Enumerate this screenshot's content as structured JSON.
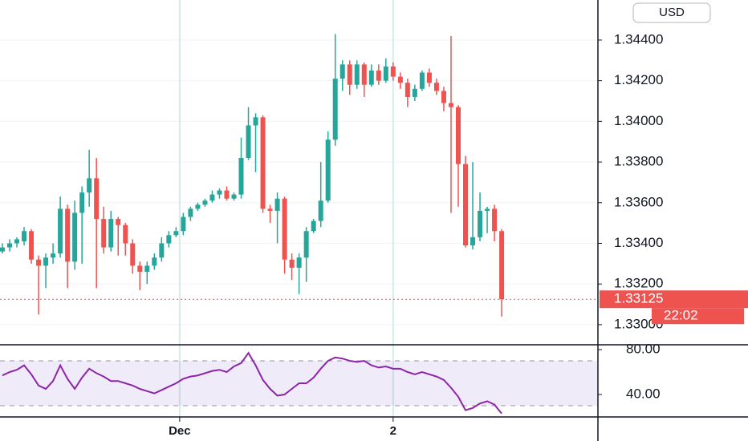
{
  "chart_data": [
    {
      "type": "candlestick",
      "currency": "USD",
      "up_color": "#26a69a",
      "down_color": "#ef5350",
      "open": [
        1.3336,
        1.3338,
        1.334,
        1.3341,
        1.3346,
        1.3332,
        1.3329,
        1.3333,
        1.3335,
        1.3357,
        1.3331,
        1.3355,
        1.3365,
        1.3372,
        1.3352,
        1.3338,
        1.3352,
        1.3349,
        1.334,
        1.3329,
        1.3326,
        1.3329,
        1.3333,
        1.334,
        1.3344,
        1.3346,
        1.3353,
        1.3357,
        1.3359,
        1.3361,
        1.3364,
        1.3366,
        1.3362,
        1.3364,
        1.3382,
        1.3398,
        1.3402,
        1.3357,
        1.3356,
        1.3362,
        1.3332,
        1.3328,
        1.3333,
        1.3346,
        1.3351,
        1.3361,
        1.3391,
        1.3421,
        1.3428,
        1.3418,
        1.3428,
        1.3418,
        1.3425,
        1.342,
        1.3427,
        1.3422,
        1.3419,
        1.3412,
        1.3416,
        1.3424,
        1.3419,
        1.3415,
        1.3409,
        1.3407,
        1.3379,
        1.3339,
        1.3343,
        1.3356,
        1.3357,
        1.3346
      ],
      "high": [
        1.334,
        1.3342,
        1.3343,
        1.3348,
        1.3347,
        1.3334,
        1.3335,
        1.334,
        1.3363,
        1.3359,
        1.3361,
        1.3368,
        1.3386,
        1.3382,
        1.3358,
        1.3356,
        1.3353,
        1.335,
        1.3342,
        1.3331,
        1.3331,
        1.3335,
        1.3343,
        1.3346,
        1.3348,
        1.3355,
        1.3358,
        1.336,
        1.3362,
        1.3366,
        1.3367,
        1.3368,
        1.3365,
        1.3392,
        1.3407,
        1.3404,
        1.3403,
        1.3359,
        1.3365,
        1.3363,
        1.3335,
        1.3335,
        1.3348,
        1.3352,
        1.338,
        1.3395,
        1.3443,
        1.343,
        1.343,
        1.343,
        1.3429,
        1.3428,
        1.3428,
        1.3431,
        1.3429,
        1.3424,
        1.3421,
        1.3418,
        1.3425,
        1.3426,
        1.3421,
        1.3417,
        1.3442,
        1.3408,
        1.3383,
        1.338,
        1.3365,
        1.3358,
        1.3359,
        1.3347
      ],
      "low": [
        1.3335,
        1.3336,
        1.3338,
        1.3339,
        1.333,
        1.3305,
        1.3318,
        1.333,
        1.3333,
        1.3318,
        1.3327,
        1.333,
        1.3358,
        1.3318,
        1.3335,
        1.3336,
        1.3334,
        1.3334,
        1.3325,
        1.3317,
        1.332,
        1.3327,
        1.3331,
        1.3338,
        1.3343,
        1.3344,
        1.3351,
        1.3356,
        1.3358,
        1.336,
        1.3362,
        1.3361,
        1.3361,
        1.3362,
        1.3381,
        1.3375,
        1.3355,
        1.335,
        1.334,
        1.3325,
        1.3322,
        1.3315,
        1.3321,
        1.3345,
        1.3348,
        1.336,
        1.3388,
        1.3415,
        1.3413,
        1.3416,
        1.3412,
        1.3417,
        1.3418,
        1.3419,
        1.342,
        1.3416,
        1.3407,
        1.341,
        1.3415,
        1.3417,
        1.3413,
        1.3405,
        1.3355,
        1.3358,
        1.3338,
        1.3337,
        1.3341,
        1.3345,
        1.3341,
        1.3304
      ],
      "close": [
        1.3338,
        1.334,
        1.3342,
        1.3346,
        1.3332,
        1.3329,
        1.3333,
        1.3335,
        1.3357,
        1.3331,
        1.3355,
        1.3365,
        1.3372,
        1.3352,
        1.3338,
        1.3352,
        1.3349,
        1.334,
        1.3329,
        1.3326,
        1.3329,
        1.3333,
        1.334,
        1.3344,
        1.3346,
        1.3353,
        1.3357,
        1.3359,
        1.3361,
        1.3364,
        1.3366,
        1.3362,
        1.3364,
        1.3382,
        1.3398,
        1.3402,
        1.3357,
        1.3356,
        1.3362,
        1.3332,
        1.3328,
        1.3333,
        1.3346,
        1.3351,
        1.3361,
        1.3391,
        1.3421,
        1.3428,
        1.3418,
        1.3428,
        1.3418,
        1.3425,
        1.342,
        1.3427,
        1.3422,
        1.3419,
        1.3412,
        1.3416,
        1.3424,
        1.3419,
        1.3415,
        1.3409,
        1.3407,
        1.3379,
        1.3339,
        1.3343,
        1.3356,
        1.3357,
        1.3346,
        1.33125
      ],
      "last_price": {
        "value": 1.33125,
        "label": "1.33125"
      },
      "countdown": "22:02",
      "xlim": [
        -0.33,
        82.3
      ],
      "xticks": [
        {
          "value": 24.5,
          "label": "Dec"
        },
        {
          "value": 54,
          "label": "2"
        }
      ],
      "ylim": [
        1.32901,
        1.34597
      ],
      "yticks": [
        {
          "value": 1.33,
          "label": "1.33000"
        },
        {
          "value": 1.332,
          "label": "1.33200"
        },
        {
          "value": 1.334,
          "label": "1.33400"
        },
        {
          "value": 1.336,
          "label": "1.33600"
        },
        {
          "value": 1.338,
          "label": "1.33800"
        },
        {
          "value": 1.34,
          "label": "1.34000"
        },
        {
          "value": 1.342,
          "label": "1.34200"
        },
        {
          "value": 1.344,
          "label": "1.34400"
        }
      ],
      "grid": true
    },
    {
      "type": "line",
      "color": "#8e24aa",
      "values": [
        57,
        60,
        62,
        66,
        58,
        48,
        45,
        52,
        66,
        54,
        45,
        55,
        63,
        59,
        56,
        52,
        52,
        50,
        48,
        45,
        43,
        41,
        44,
        47,
        50,
        54,
        56,
        57,
        59,
        61,
        62,
        60,
        65,
        68,
        77,
        66,
        53,
        45,
        39,
        40,
        45,
        50,
        50,
        55,
        63,
        70,
        73,
        72,
        70,
        69,
        70,
        66,
        64,
        65,
        63,
        63,
        60,
        58,
        60,
        58,
        56,
        53,
        46,
        38,
        26,
        28,
        32,
        34,
        31,
        23
      ],
      "bands": [
        30,
        70
      ],
      "ylim": [
        20,
        84.3
      ],
      "yticks": [
        {
          "value": 40,
          "label": "40.00"
        },
        {
          "value": 80,
          "label": "80.00"
        }
      ]
    }
  ]
}
